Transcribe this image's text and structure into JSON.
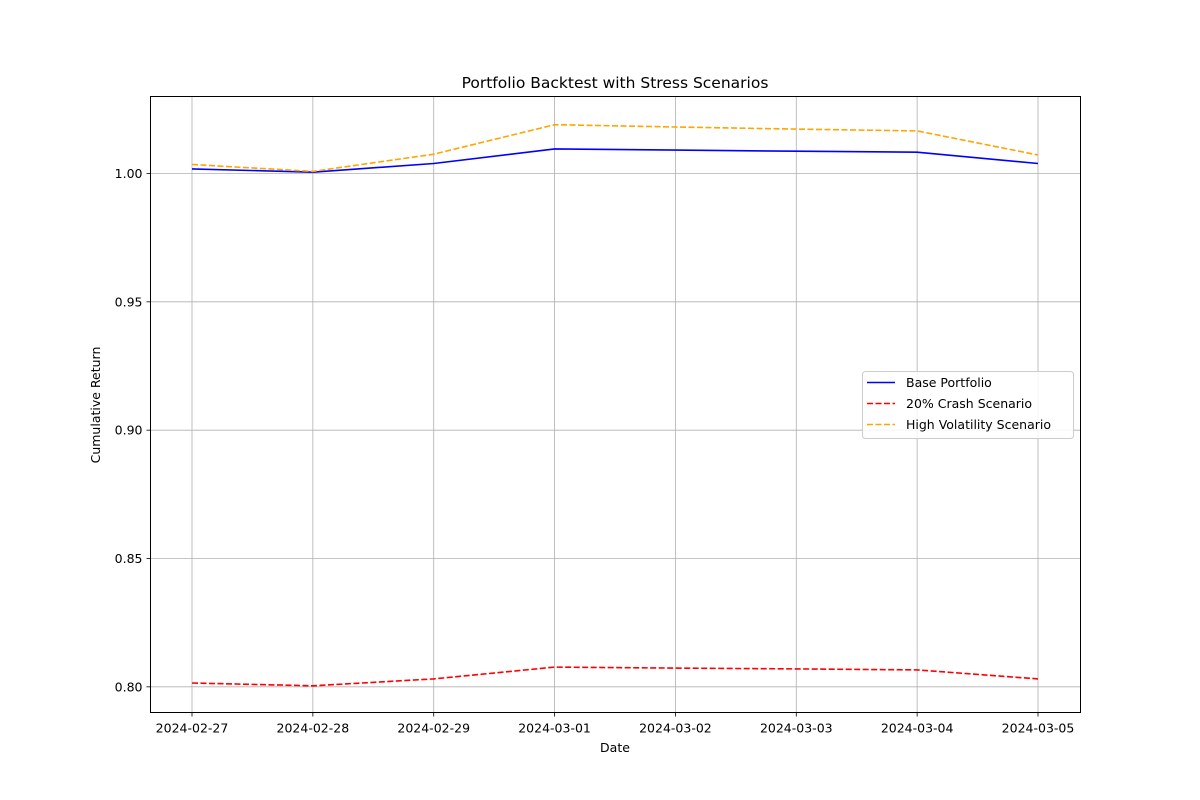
{
  "chart_data": {
    "type": "line",
    "title": "Portfolio Backtest with Stress Scenarios",
    "xlabel": "Date",
    "ylabel": "Cumulative Return",
    "x": [
      "2024-02-27",
      "2024-02-28",
      "2024-02-29",
      "2024-03-01",
      "2024-03-02",
      "2024-03-03",
      "2024-03-04",
      "2024-03-05"
    ],
    "yticks": [
      "0.80",
      "0.85",
      "0.90",
      "0.95",
      "1.00"
    ],
    "ylim": [
      0.79,
      1.03
    ],
    "grid": true,
    "legend_position": "center-right",
    "series": [
      {
        "name": "Base Portfolio",
        "color": "#0000ff",
        "style": "solid",
        "values": [
          1.0018,
          1.0005,
          1.0039,
          1.0096,
          1.0091,
          1.0087,
          1.0083,
          1.0039
        ]
      },
      {
        "name": "20% Crash Scenario",
        "color": "#ff0000",
        "style": "dashed",
        "values": [
          0.8015,
          0.8004,
          0.8031,
          0.8077,
          0.8073,
          0.807,
          0.8066,
          0.8031
        ]
      },
      {
        "name": "High Volatility Scenario",
        "color": "#ffa500",
        "style": "dashed",
        "values": [
          1.0035,
          1.0008,
          1.0075,
          1.019,
          1.0181,
          1.0173,
          1.0166,
          1.0072
        ]
      }
    ]
  }
}
